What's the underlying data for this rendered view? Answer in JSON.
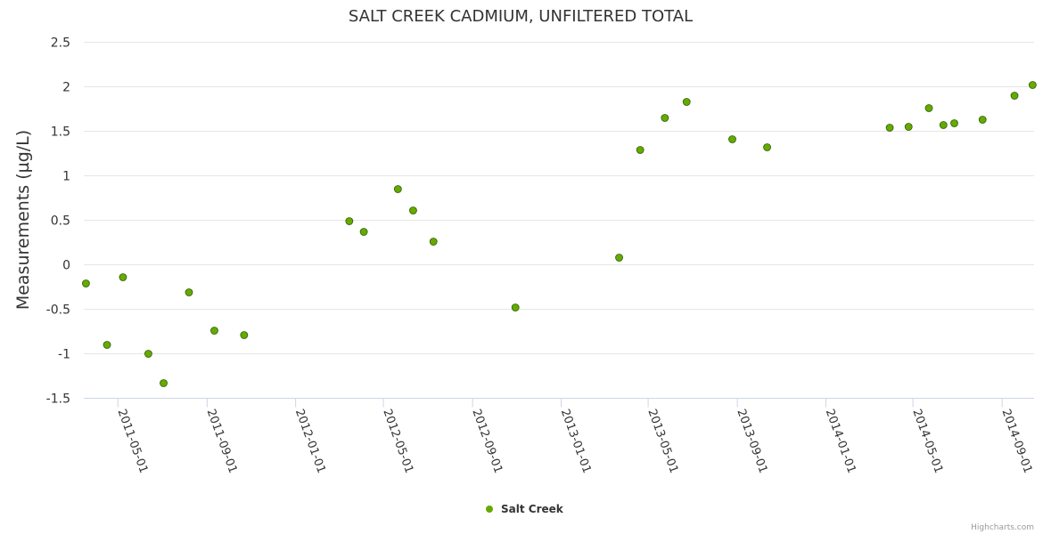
{
  "chart_data": {
    "type": "scatter",
    "title": "SALT CREEK CADMIUM, UNFILTERED TOTAL",
    "xlabel": "",
    "ylabel": "Measurements (µg/L)",
    "ylim": [
      -1.5,
      2.5
    ],
    "yticks": [
      "2.5",
      "2",
      "1.5",
      "1",
      "0.5",
      "0",
      "-0.5",
      "-1",
      "-1.5"
    ],
    "xlim": [
      "2011-03-15",
      "2014-10-15"
    ],
    "xticks": [
      "2011-05-01",
      "2011-09-01",
      "2012-01-01",
      "2012-05-01",
      "2012-09-01",
      "2013-01-01",
      "2013-05-01",
      "2013-09-01",
      "2014-01-01",
      "2014-05-01",
      "2014-09-01"
    ],
    "grid": true,
    "legend_position": "bottom-center",
    "series": [
      {
        "name": "Salt Creek",
        "color": "#66aa00",
        "points": [
          {
            "x": "2011-03-18",
            "y": -0.21
          },
          {
            "x": "2011-04-16",
            "y": -0.9
          },
          {
            "x": "2011-05-08",
            "y": -0.14
          },
          {
            "x": "2011-06-12",
            "y": -1.0
          },
          {
            "x": "2011-07-03",
            "y": -1.33
          },
          {
            "x": "2011-08-07",
            "y": -0.31
          },
          {
            "x": "2011-09-11",
            "y": -0.74
          },
          {
            "x": "2011-10-22",
            "y": -0.79
          },
          {
            "x": "2012-03-15",
            "y": 0.49
          },
          {
            "x": "2012-04-04",
            "y": 0.37
          },
          {
            "x": "2012-05-21",
            "y": 0.85
          },
          {
            "x": "2012-06-11",
            "y": 0.61
          },
          {
            "x": "2012-07-09",
            "y": 0.26
          },
          {
            "x": "2012-10-30",
            "y": -0.48
          },
          {
            "x": "2013-03-22",
            "y": 0.08
          },
          {
            "x": "2013-04-20",
            "y": 1.29
          },
          {
            "x": "2013-05-24",
            "y": 1.65
          },
          {
            "x": "2013-06-23",
            "y": 1.83
          },
          {
            "x": "2013-08-25",
            "y": 1.41
          },
          {
            "x": "2013-10-12",
            "y": 1.32
          },
          {
            "x": "2014-03-30",
            "y": 1.54
          },
          {
            "x": "2014-04-25",
            "y": 1.55
          },
          {
            "x": "2014-05-23",
            "y": 1.76
          },
          {
            "x": "2014-06-12",
            "y": 1.57
          },
          {
            "x": "2014-06-27",
            "y": 1.59
          },
          {
            "x": "2014-08-05",
            "y": 1.63
          },
          {
            "x": "2014-09-18",
            "y": 1.9
          },
          {
            "x": "2014-10-13",
            "y": 2.02
          }
        ]
      }
    ]
  },
  "credits": "Highcharts.com"
}
